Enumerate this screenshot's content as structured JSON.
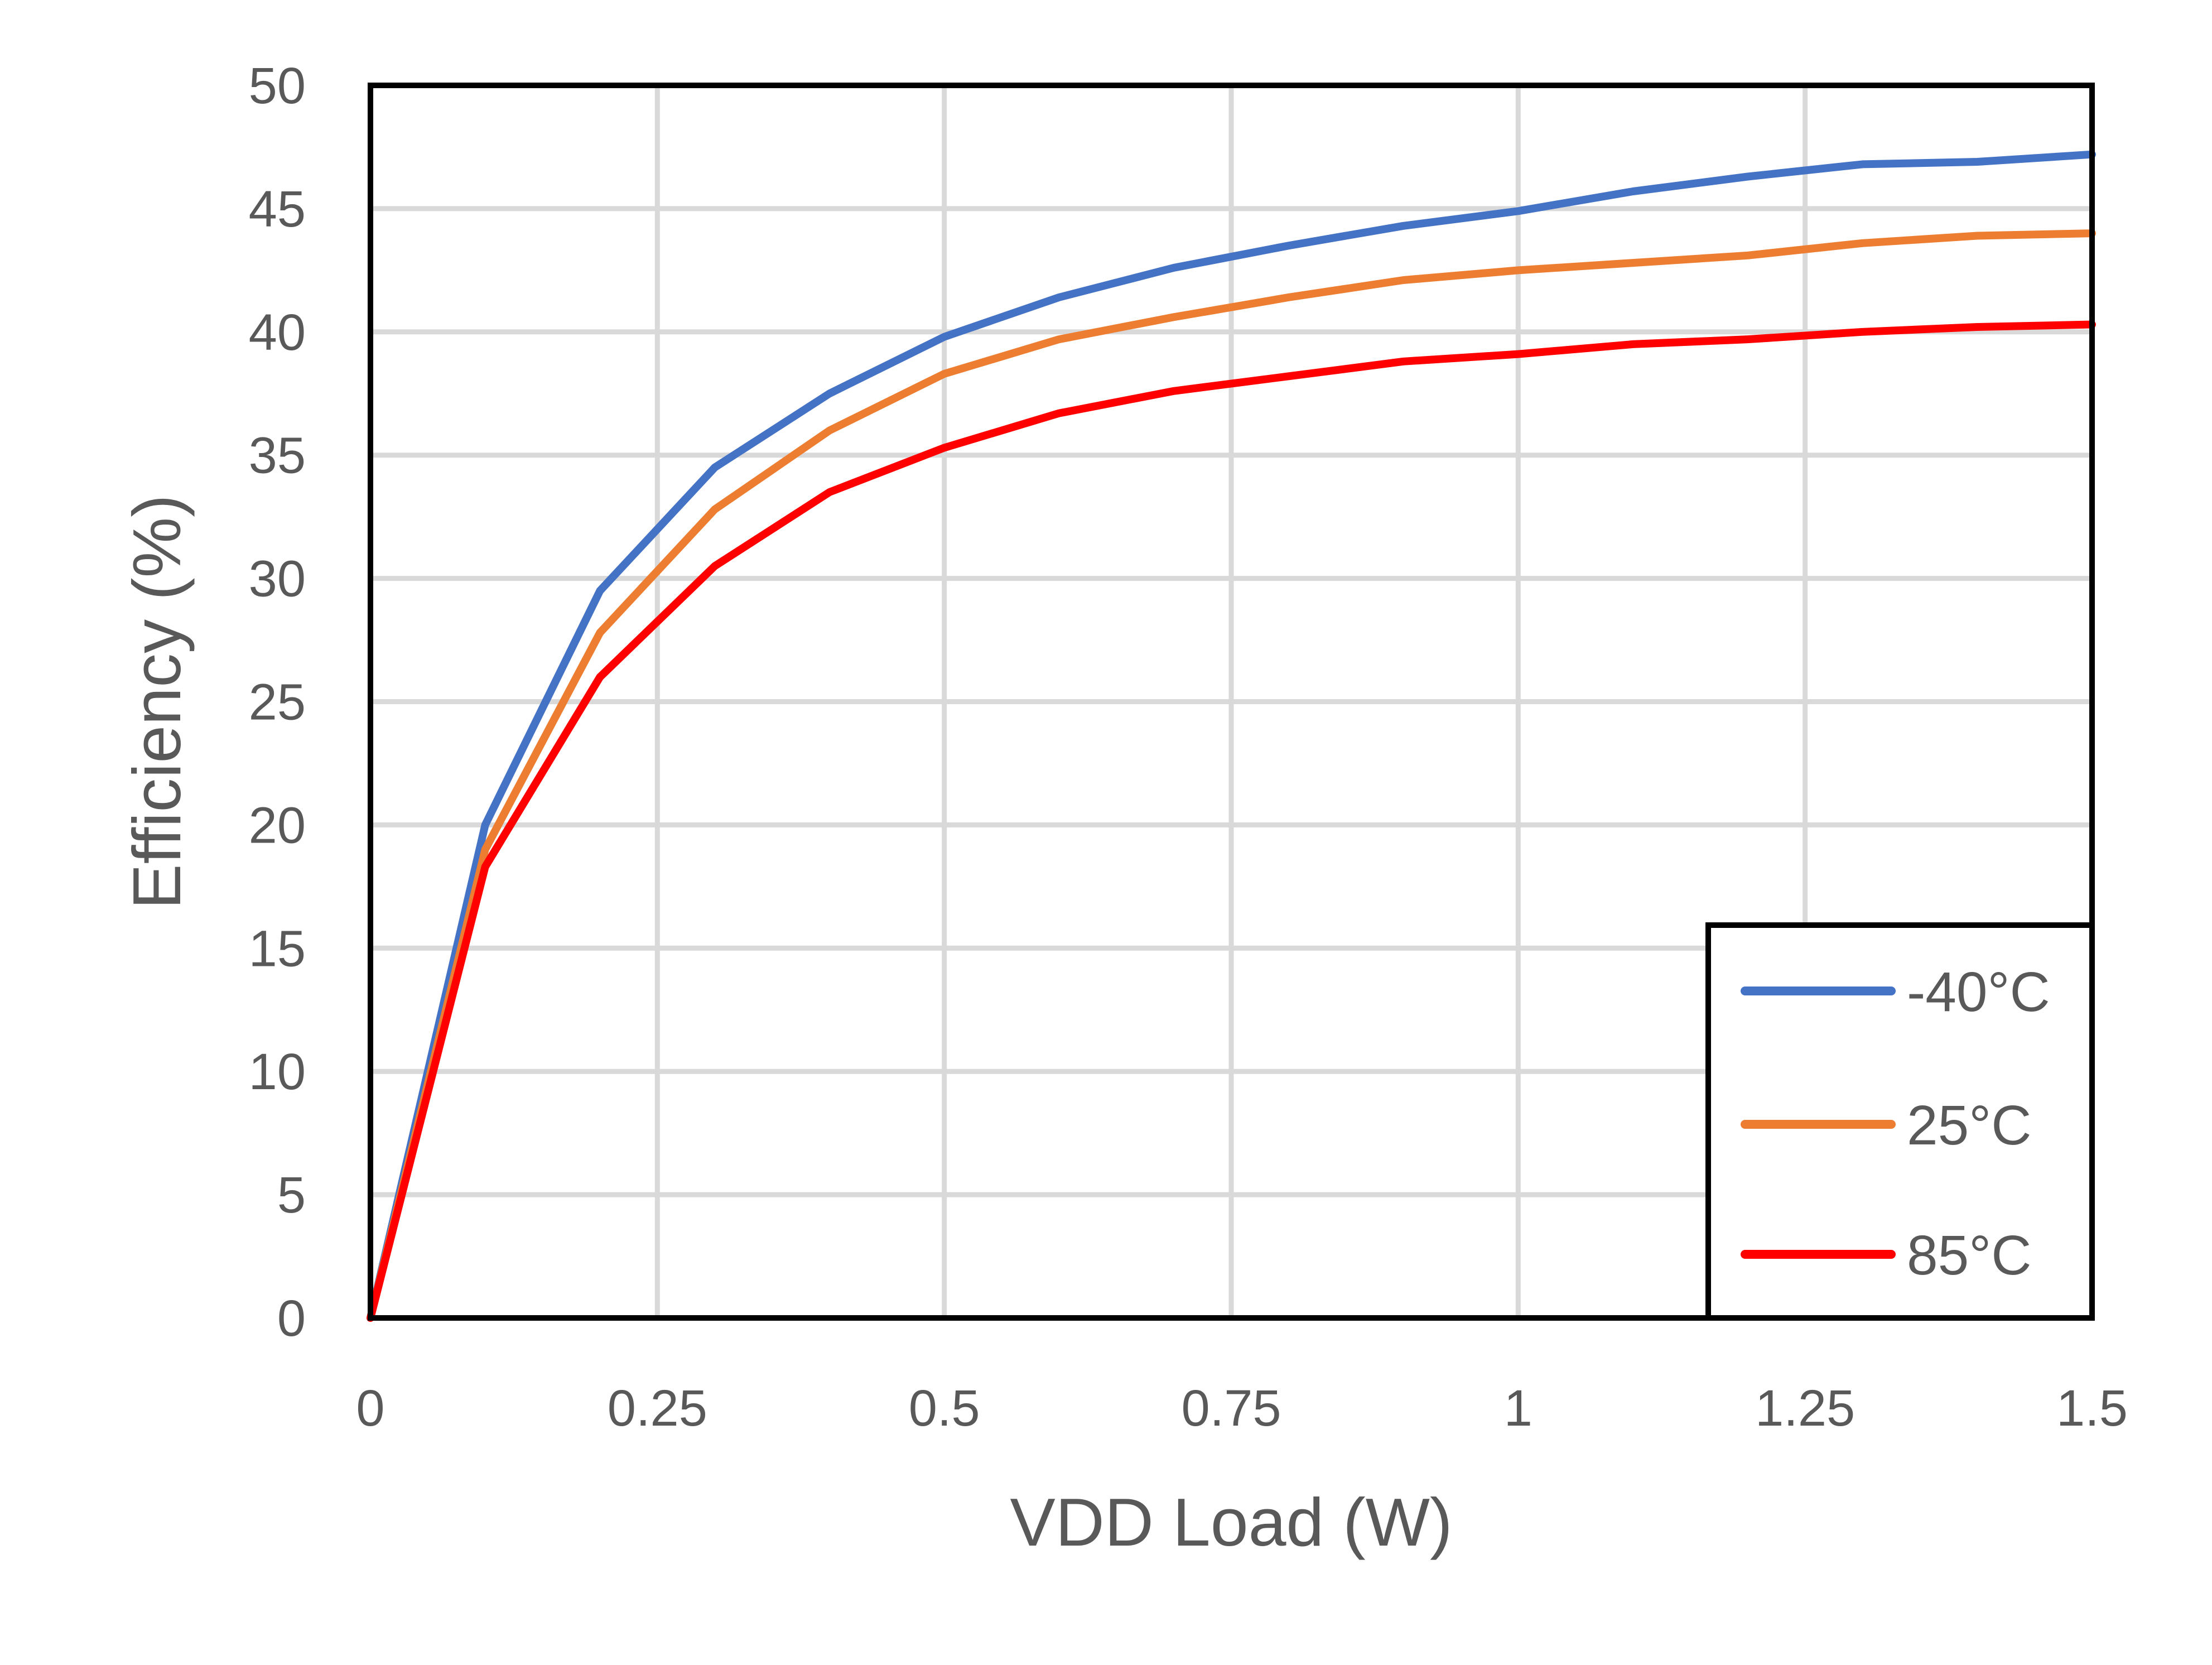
{
  "chart_data": {
    "type": "line",
    "title": "",
    "xlabel": "VDD Load (W)",
    "ylabel": "Efficiency (%)",
    "xlim": [
      0,
      1.5
    ],
    "ylim": [
      0,
      50
    ],
    "x_ticks": [
      "0",
      "0.25",
      "0.5",
      "0.75",
      "1",
      "1.25",
      "1.5"
    ],
    "y_ticks": [
      "0",
      "5",
      "10",
      "15",
      "20",
      "25",
      "30",
      "35",
      "40",
      "45",
      "50"
    ],
    "grid": true,
    "legend_position": "bottom-right",
    "x": [
      0,
      0.1,
      0.2,
      0.3,
      0.4,
      0.5,
      0.6,
      0.7,
      0.8,
      0.9,
      1.0,
      1.1,
      1.2,
      1.3,
      1.4,
      1.5
    ],
    "series": [
      {
        "name": "-40°C",
        "color": "#4472c4",
        "values": [
          0,
          20.0,
          29.5,
          34.5,
          37.5,
          39.8,
          41.4,
          42.6,
          43.5,
          44.3,
          44.9,
          45.7,
          46.3,
          46.8,
          46.9,
          47.2
        ]
      },
      {
        "name": "25°C",
        "color": "#ed7d31",
        "values": [
          0,
          19.0,
          27.8,
          32.8,
          36.0,
          38.3,
          39.7,
          40.6,
          41.4,
          42.1,
          42.5,
          42.8,
          43.1,
          43.6,
          43.9,
          44.0
        ]
      },
      {
        "name": "85°C",
        "color": "#ff0000",
        "values": [
          0,
          18.3,
          26.0,
          30.5,
          33.5,
          35.3,
          36.7,
          37.6,
          38.2,
          38.8,
          39.1,
          39.5,
          39.7,
          40.0,
          40.2,
          40.3
        ]
      }
    ]
  }
}
